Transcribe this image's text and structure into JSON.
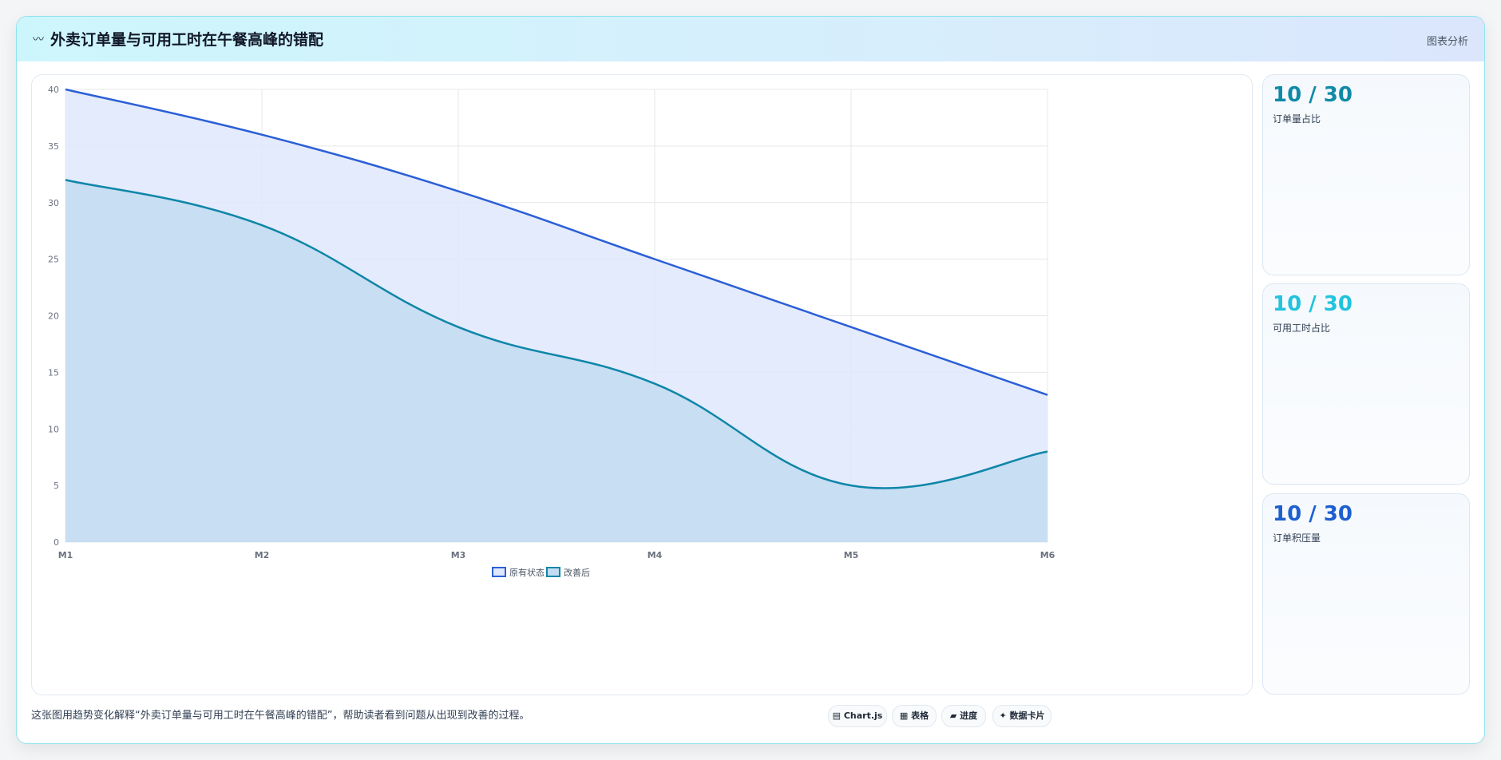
{
  "header": {
    "icon": "〰",
    "title": "外卖订单量与可用工时在午餐高峰的错配",
    "tag": "图表分析"
  },
  "stats": [
    {
      "value": "10 / 30",
      "label": "订单量占比",
      "color": "#0e8aa6"
    },
    {
      "value": "10 / 30",
      "label": "可用工时占比",
      "color": "#22c3de"
    },
    {
      "value": "10 / 30",
      "label": "订单积压量",
      "color": "#1d5fcf"
    }
  ],
  "footer": {
    "note": "这张图用趋势变化解释“外卖订单量与可用工时在午餐高峰的错配”，帮助读者看到问题从出现到改善的过程。",
    "pills": [
      {
        "icon": "chart-icon",
        "label": "▤ Chart.js"
      },
      {
        "icon": "table-icon",
        "label": "▦ 表格"
      },
      {
        "icon": "progress-icon",
        "label": "▰ 进度"
      },
      {
        "icon": "card-icon",
        "label": "✦ 数据卡片"
      }
    ]
  },
  "chart_data": {
    "type": "area",
    "categories": [
      "M1",
      "M2",
      "M3",
      "M4",
      "M5",
      "M6"
    ],
    "ylim": [
      0,
      40
    ],
    "yticks": [
      0,
      5,
      10,
      15,
      20,
      25,
      30,
      35,
      40
    ],
    "grid": true,
    "legend_position": "bottom",
    "series": [
      {
        "name": "原有状态",
        "values": [
          40,
          36,
          31,
          25,
          19,
          13
        ],
        "color": "#2b5fd6",
        "fill": "#dfe8fb"
      },
      {
        "name": "改善后",
        "values": [
          32,
          28,
          19,
          14,
          5,
          8
        ],
        "color": "#0e86a8",
        "fill": "#c3dcf1"
      }
    ]
  }
}
